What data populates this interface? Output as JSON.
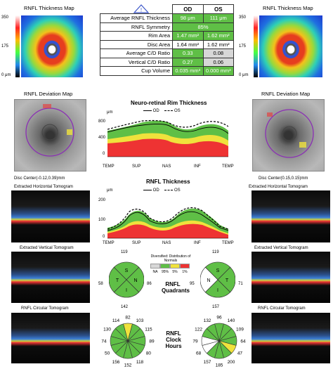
{
  "left": {
    "thickness_map_title": "RNFL Thickness Map",
    "scale_top": "350",
    "scale_mid": "175",
    "scale_bottom": "0 μm",
    "deviation_title": "RNFL Deviation Map",
    "disc_center": "Disc Center(-0.12,0.39)mm",
    "horiz_title": "Extracted Horizontal Tomogram",
    "vert_title": "Extracted Vertical Tomogram",
    "circ_title": "RNFL Circular Tomogram"
  },
  "right": {
    "thickness_map_title": "RNFL Thickness Map",
    "scale_top": "350",
    "scale_mid": "175",
    "scale_bottom": "0 μm",
    "deviation_title": "RNFL Deviation Map",
    "disc_center": "Disc Center(0.15,0.15)mm",
    "horiz_title": "Extracted Horizontal Tomogram",
    "vert_title": "Extracted Vertical Tomogram",
    "circ_title": "RNFL Circular Tomogram"
  },
  "table": {
    "header_od": "OD",
    "header_os": "OS",
    "rows": [
      {
        "label": "Average RNFL Thickness",
        "od": "98 μm",
        "os": "111 μm"
      },
      {
        "label": "RNFL Symmetry",
        "merged": "85%"
      },
      {
        "label": "Rim Area",
        "od": "1.47 mm²",
        "os": "1.62 mm²"
      },
      {
        "label": "Disc Area",
        "od": "1.64 mm²",
        "os": "1.62 mm²"
      },
      {
        "label": "Average C/D Ratio",
        "od": "0.33",
        "os": "0.08"
      },
      {
        "label": "Vertical C/D Ratio",
        "od": "0.27",
        "os": "0.06"
      },
      {
        "label": "Cup Volume",
        "od": "0.035 mm³",
        "os": "0.000 mm³"
      }
    ]
  },
  "rim_chart": {
    "title": "Neuro-retinal Rim Thickness",
    "unit": "μm",
    "legend_od": "OD",
    "legend_os": "OS",
    "yticks": [
      "800",
      "400",
      "0"
    ],
    "xticks": [
      "TEMP",
      "SUP",
      "NAS",
      "INF",
      "TEMP"
    ]
  },
  "rnfl_chart": {
    "title": "RNFL Thickness",
    "unit": "μm",
    "legend_od": "OD",
    "legend_os": "OS",
    "yticks": [
      "200",
      "100",
      "0"
    ],
    "xticks": [
      "TEMP",
      "SUP",
      "NAS",
      "INF",
      "TEMP"
    ]
  },
  "legend_box": {
    "title": "Diversified: Distribution of Normals",
    "labels": [
      "NA",
      "95%",
      "5%",
      "1%"
    ]
  },
  "quadrants": {
    "label": "RNFL Quadrants",
    "od": {
      "top": "119",
      "left": "58",
      "right": "86",
      "bottom": "142",
      "letters": [
        "S",
        "T",
        "N",
        "I"
      ]
    },
    "os": {
      "top": "119",
      "left": "95",
      "right": "71",
      "bottom": "157",
      "letters": [
        "S",
        "N",
        "T",
        "I"
      ]
    }
  },
  "clock": {
    "label": "RNFL Clock Hours",
    "od": [
      "82",
      "103",
      "115",
      "89",
      "80",
      "118",
      "152",
      "156",
      "50",
      "74",
      "130",
      "114"
    ],
    "os": [
      "96",
      "140",
      "109",
      "64",
      "47",
      "200",
      "185",
      "157",
      "68",
      "79",
      "122",
      "132"
    ]
  },
  "colors": {
    "green": "#5fbf46",
    "yellow": "#f0e23c",
    "red": "#e33",
    "gray": "#d7d7d7"
  }
}
